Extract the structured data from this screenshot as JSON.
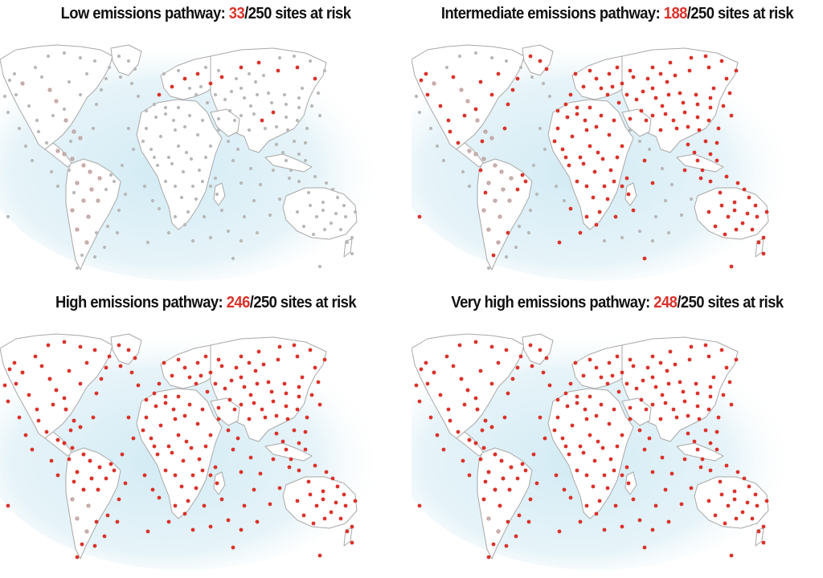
{
  "colors": {
    "at_risk": "#d9332b",
    "not_at_risk": "#b8b8b8",
    "ocean_glow": "#d3ebf4",
    "land": "#ffffff",
    "coast": "#a8a8a8",
    "title_text": "#111111"
  },
  "panels": [
    {
      "prefix": "Low emissions pathway: ",
      "count": "33",
      "suffix": "/250 sites at risk",
      "at_risk": 33,
      "total": 250
    },
    {
      "prefix": "Intermediate emissions pathway: ",
      "count": "188",
      "suffix": "/250 sites at risk",
      "at_risk": 188,
      "total": 250
    },
    {
      "prefix": "High emissions pathway: ",
      "count": "246",
      "suffix": "/250 sites at risk",
      "at_risk": 246,
      "total": 250
    },
    {
      "prefix": "Very high emissions pathway: ",
      "count": "248",
      "suffix": "/250 sites at risk",
      "at_risk": 248,
      "total": 250
    }
  ]
}
